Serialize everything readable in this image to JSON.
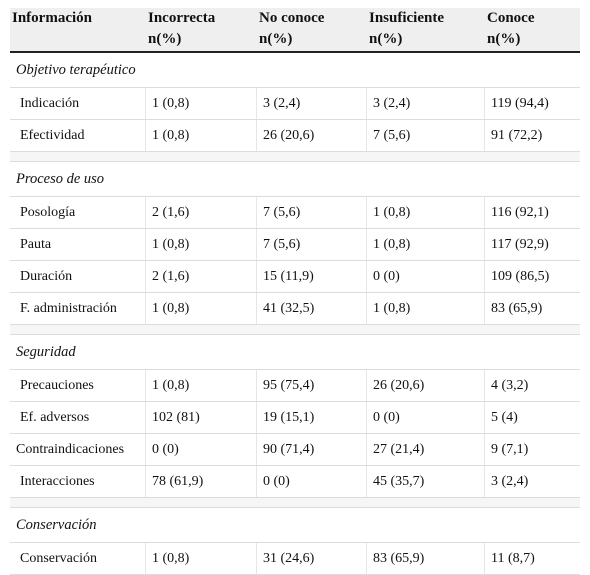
{
  "table": {
    "header": [
      {
        "line1": "Información",
        "line2": ""
      },
      {
        "line1": "Incorrecta",
        "line2": "n(%)"
      },
      {
        "line1": "No conoce",
        "line2": "n(%)"
      },
      {
        "line1": "Insuficiente",
        "line2": "n(%)"
      },
      {
        "line1": "Conoce",
        "line2": "n(%)"
      }
    ],
    "sections": [
      {
        "title": "Objetivo terapéutico",
        "rows": [
          [
            "Indicación",
            "1 (0,8)",
            "3 (2,4)",
            "3 (2,4)",
            "119 (94,4)"
          ],
          [
            "Efectividad",
            "1 (0,8)",
            "26 (20,6)",
            "7 (5,6)",
            "91 (72,2)"
          ]
        ]
      },
      {
        "title": "Proceso de uso",
        "rows": [
          [
            "Posología",
            "2 (1,6)",
            "7 (5,6)",
            "1 (0,8)",
            "116 (92,1)"
          ],
          [
            "Pauta",
            "1 (0,8)",
            "7 (5,6)",
            "1 (0,8)",
            "117 (92,9)"
          ],
          [
            "Duración",
            "2 (1,6)",
            "15 (11,9)",
            "0 (0)",
            "109 (86,5)"
          ],
          [
            "F. administración",
            "1 (0,8)",
            "41 (32,5)",
            "1 (0,8)",
            "83 (65,9)"
          ]
        ]
      },
      {
        "title": "Seguridad",
        "rows": [
          [
            "Precauciones",
            "1 (0,8)",
            "95 (75,4)",
            "26 (20,6)",
            "4 (3,2)"
          ],
          [
            "Ef. adversos",
            "102 (81)",
            "19 (15,1)",
            "0 (0)",
            "5 (4)"
          ],
          [
            "Contraindicaciones",
            "0 (0)",
            "90 (71,4)",
            "27 (21,4)",
            "9 (7,1)"
          ],
          [
            "Interacciones",
            "78 (61,9)",
            "0 (0)",
            "45 (35,7)",
            "3 (2,4)"
          ]
        ]
      },
      {
        "title": "Conservación",
        "rows": [
          [
            "Conservación",
            "1 (0,8)",
            "31 (24,6)",
            "83 (65,9)",
            "11 (8,7)"
          ]
        ]
      }
    ]
  }
}
